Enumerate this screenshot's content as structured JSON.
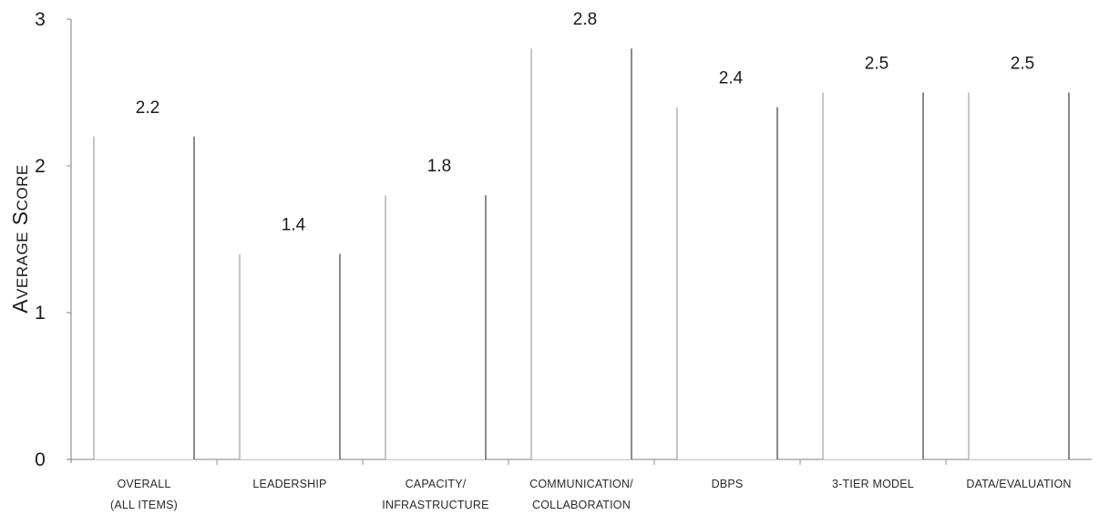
{
  "chart_data": {
    "type": "bar",
    "categories": [
      "Overall\n(All items)",
      "Leadership",
      "Capacity/\nInfrastructure",
      "Communication/\nCollaboration",
      "DBPS",
      "3-Tier Model",
      "Data/Evaluation"
    ],
    "values": [
      2.2,
      1.4,
      1.8,
      2.8,
      2.4,
      2.5,
      2.5
    ],
    "value_labels": [
      "2.2",
      "1.4",
      "1.8",
      "2.8",
      "2.4",
      "2.5",
      "2.5"
    ],
    "y_ticks": [
      "0",
      "1",
      "2",
      "3"
    ],
    "ylabel": "Average Score",
    "ylim": [
      0,
      3
    ],
    "xlabel": "",
    "title": "",
    "grid": false,
    "legend": "none",
    "colors": {
      "axis": "#9a9a9a",
      "bar_outline": "#a8a8a8",
      "bar_outline_right": "#6e6e6e",
      "bar_fill": "#ffffff",
      "text": "#1a1a1a"
    }
  }
}
